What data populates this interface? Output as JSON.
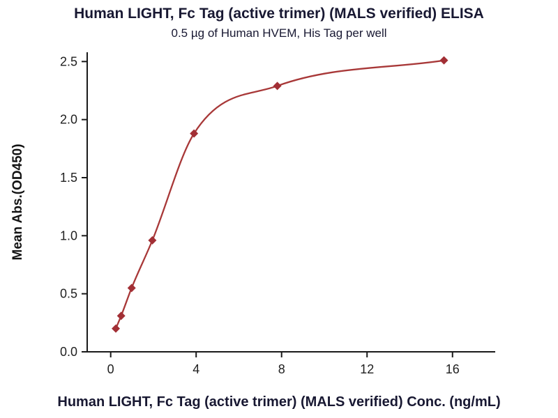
{
  "chart_data": {
    "type": "scatter",
    "title": "Human LIGHT, Fc Tag (active trimer) (MALS verified) ELISA",
    "subtitle": "0.5 µg of Human HVEM, His Tag per well",
    "xlabel": "Human LIGHT, Fc Tag (active trimer) (MALS verified) Conc. (ng/mL)",
    "ylabel": "Mean Abs.(OD450)",
    "x": [
      0.24,
      0.49,
      0.98,
      1.95,
      3.9,
      7.8,
      15.6
    ],
    "y": [
      0.2,
      0.31,
      0.55,
      0.96,
      1.88,
      2.29,
      2.51
    ],
    "fit_curve": "4PL sigmoid through points",
    "xticks": [
      0,
      4,
      8,
      12,
      16
    ],
    "xtick_labels": [
      "0",
      "4",
      "8",
      "12",
      "16"
    ],
    "yticks": [
      0.0,
      0.5,
      1.0,
      1.5,
      2.0,
      2.5
    ],
    "ytick_labels": [
      "0.0",
      "0.5",
      "1.0",
      "1.5",
      "2.0",
      "2.5"
    ],
    "xlim": [
      -1.1,
      18.0
    ],
    "ylim": [
      0,
      2.58
    ],
    "grid": false,
    "legend": null,
    "marker": "diamond",
    "line_color": "#a83838",
    "marker_color": "#a22f35",
    "axis_color": "#1a1a1a",
    "tick_label_color": "#1f1f1f"
  }
}
